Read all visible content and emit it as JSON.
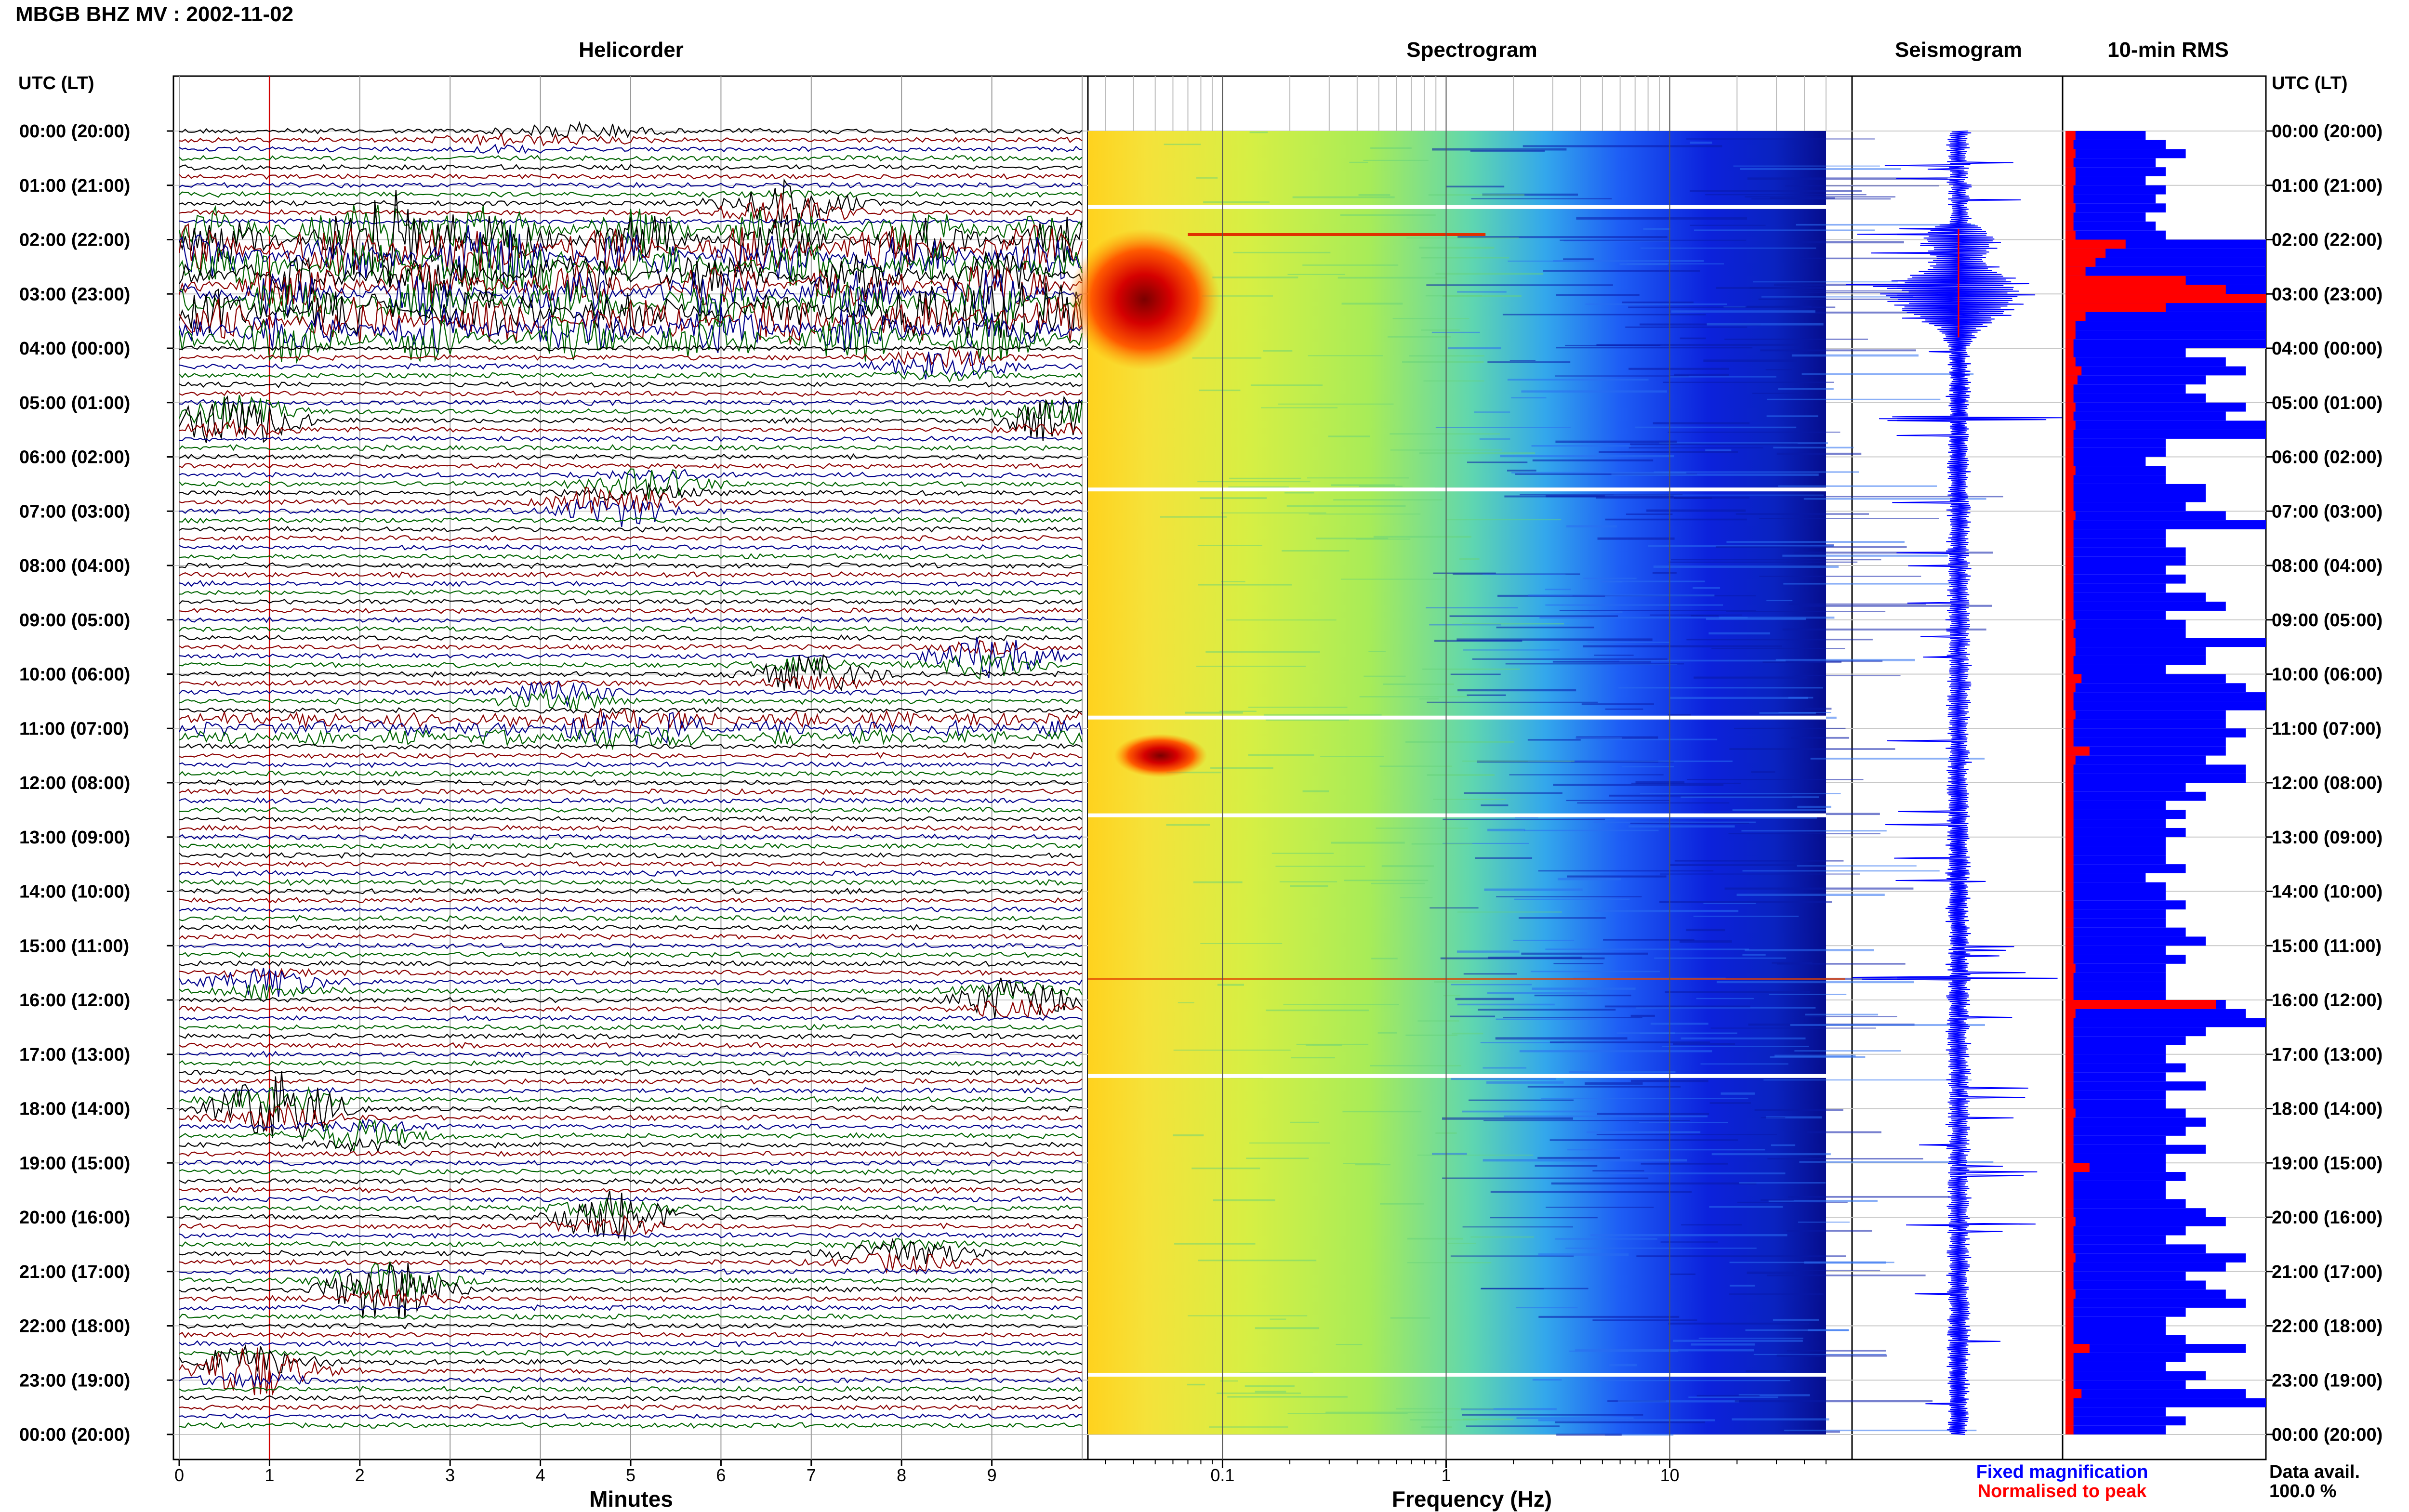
{
  "page": {
    "title": "MBGB BHZ MV : 2002-11-02",
    "time_axis_label": "UTC (LT)"
  },
  "panels": {
    "helicorder": "Helicorder",
    "spectrogram": "Spectrogram",
    "seismogram": "Seismogram",
    "rms": "10-min RMS"
  },
  "time_labels": [
    "00:00 (20:00)",
    "01:00 (21:00)",
    "02:00 (22:00)",
    "03:00 (23:00)",
    "04:00 (00:00)",
    "05:00 (01:00)",
    "06:00 (02:00)",
    "07:00 (03:00)",
    "08:00 (04:00)",
    "09:00 (05:00)",
    "10:00 (06:00)",
    "11:00 (07:00)",
    "12:00 (08:00)",
    "13:00 (09:00)",
    "14:00 (10:00)",
    "15:00 (11:00)",
    "16:00 (12:00)",
    "17:00 (13:00)",
    "18:00 (14:00)",
    "19:00 (15:00)",
    "20:00 (16:00)",
    "21:00 (17:00)",
    "22:00 (18:00)",
    "23:00 (19:00)",
    "00:00 (20:00)"
  ],
  "helicorder_axis": {
    "label": "Minutes",
    "ticks": [
      "0",
      "1",
      "2",
      "3",
      "4",
      "5",
      "6",
      "7",
      "8",
      "9"
    ],
    "range": [
      0,
      10
    ],
    "trace_colors": [
      "#000000",
      "#8b0000",
      "#00008b",
      "#006400"
    ],
    "rows_per_hour": 6
  },
  "spectrogram_axis": {
    "label": "Frequency (Hz)",
    "scale": "log",
    "ticks": [
      "0.1",
      "1",
      "10"
    ],
    "range_hz": [
      0.025,
      50
    ]
  },
  "legend": {
    "fixed": "Fixed magnification",
    "normalised": "Normalised to peak",
    "fixed_color": "#0000ff",
    "normalised_color": "#ff0000"
  },
  "data_availability": {
    "label": "Data avail.",
    "value": "100.0 %"
  },
  "chart_data": {
    "type": "heatmap",
    "title": "MBGB BHZ MV : 2002-11-02",
    "ylabel": "UTC (LT)",
    "helicorder": {
      "xlabel": "Minutes",
      "xlim": [
        0,
        10
      ],
      "events_utc_hour_minute": [
        {
          "hour": 0.0,
          "minute": 4.5,
          "amp": 0.6,
          "color": "black"
        },
        {
          "hour": 0.2,
          "minute": 3.5,
          "amp": 0.4,
          "color": "blue"
        },
        {
          "hour": 1.4,
          "minute": 6.7,
          "amp": 2.5,
          "color": "blue"
        },
        {
          "hour": 2.0,
          "minute": 2.5,
          "amp": 3.0,
          "color": "darkred"
        },
        {
          "hour": 2.4,
          "minute": 3.5,
          "amp": 2.5,
          "color": "black"
        },
        {
          "hour": 3.3,
          "minute": 9.0,
          "amp": 2.0,
          "color": "darkred"
        },
        {
          "hour": 4.3,
          "minute": 8.5,
          "amp": 1.5,
          "color": "blue"
        },
        {
          "hour": 5.3,
          "minute": 0.6,
          "amp": 2.5,
          "color": "darkred"
        },
        {
          "hour": 5.3,
          "minute": 9.8,
          "amp": 2.0,
          "color": "black"
        },
        {
          "hour": 6.5,
          "minute": 5.2,
          "amp": 1.2,
          "color": "black"
        },
        {
          "hour": 6.9,
          "minute": 4.8,
          "amp": 2.0,
          "color": "black"
        },
        {
          "hour": 9.7,
          "minute": 9.0,
          "amp": 2.0,
          "color": "darkgreen"
        },
        {
          "hour": 10.4,
          "minute": 4.2,
          "amp": 1.2,
          "color": "darkgreen"
        },
        {
          "hour": 10.0,
          "minute": 7.0,
          "amp": 1.5,
          "color": "black"
        },
        {
          "hour": 11.0,
          "minute": 5.0,
          "amp": 1.2,
          "color": "darkgreen"
        },
        {
          "hour": 16.0,
          "minute": 9.3,
          "amp": 1.8,
          "color": "black"
        },
        {
          "hour": 15.7,
          "minute": 1.0,
          "amp": 1.2,
          "color": "blue"
        },
        {
          "hour": 18.0,
          "minute": 1.1,
          "amp": 3.0,
          "color": "darkred"
        },
        {
          "hour": 18.5,
          "minute": 2.0,
          "amp": 1.2,
          "color": "darkgreen"
        },
        {
          "hour": 20.0,
          "minute": 4.8,
          "amp": 2.0,
          "color": "black"
        },
        {
          "hour": 20.7,
          "minute": 8.0,
          "amp": 1.5,
          "color": "black"
        },
        {
          "hour": 21.3,
          "minute": 2.3,
          "amp": 3.0,
          "color": "darkred"
        },
        {
          "hour": 22.8,
          "minute": 0.8,
          "amp": 2.5,
          "color": "darkred"
        }
      ]
    },
    "spectrogram": {
      "xlabel": "Frequency (Hz)",
      "xscale": "log",
      "xlim": [
        0.025,
        50
      ],
      "gaps_utc_hour": [
        1.4,
        6.6,
        10.8,
        12.6,
        17.4,
        22.9
      ],
      "hotspots": [
        {
          "hour_from": 1.8,
          "hour_to": 4.4,
          "f_from": 0.025,
          "f_to": 0.08
        },
        {
          "hour_from": 11.1,
          "hour_to": 11.9,
          "f_from": 0.04,
          "f_to": 0.07
        }
      ]
    },
    "rms_10min": {
      "series": [
        {
          "name": "Fixed magnification",
          "color": "#0000ff",
          "values": [
            0.4,
            0.5,
            0.6,
            0.45,
            0.5,
            0.4,
            0.5,
            0.45,
            0.5,
            0.4,
            0.45,
            0.5,
            1.0,
            1.0,
            1.0,
            1.0,
            1.0,
            1.0,
            1.0,
            1.0,
            1.0,
            1.0,
            1.0,
            1.0,
            0.6,
            0.8,
            0.9,
            0.7,
            0.6,
            0.7,
            0.9,
            0.8,
            1.0,
            1.0,
            0.5,
            0.5,
            0.4,
            0.5,
            0.5,
            0.7,
            0.7,
            0.6,
            0.8,
            1.0,
            0.5,
            0.5,
            0.6,
            0.6,
            0.5,
            0.6,
            0.5,
            0.7,
            0.8,
            0.5,
            0.6,
            0.6,
            1.0,
            0.7,
            0.7,
            0.5,
            0.8,
            0.9,
            1.0,
            1.0,
            0.8,
            0.8,
            0.9,
            0.8,
            0.8,
            0.7,
            0.9,
            0.9,
            0.6,
            0.7,
            0.5,
            0.6,
            0.5,
            0.6,
            0.5,
            0.5,
            0.5,
            0.6,
            0.4,
            0.5,
            0.5,
            0.6,
            0.5,
            0.5,
            0.6,
            0.7,
            0.5,
            0.6,
            0.5,
            0.5,
            0.5,
            0.5,
            0.8,
            0.9,
            1.0,
            0.7,
            0.6,
            0.5,
            0.5,
            0.6,
            0.5,
            0.7,
            0.5,
            0.5,
            0.6,
            0.7,
            0.6,
            0.5,
            0.7,
            0.5,
            0.5,
            0.6,
            0.5,
            0.5,
            0.6,
            0.7,
            0.8,
            0.6,
            0.5,
            0.7,
            0.9,
            0.8,
            0.6,
            0.7,
            0.8,
            0.9,
            0.6,
            0.5,
            0.5,
            0.6,
            0.9,
            0.6,
            0.5,
            0.7,
            0.6,
            0.9,
            1.0,
            0.5,
            0.6,
            0.5
          ]
        },
        {
          "name": "Normalised to peak",
          "color": "#ff0000",
          "values": [
            0.05,
            0.04,
            0.05,
            0.04,
            0.05,
            0.05,
            0.04,
            0.04,
            0.05,
            0.04,
            0.04,
            0.05,
            0.3,
            0.2,
            0.15,
            0.1,
            0.6,
            0.8,
            1.0,
            0.5,
            0.1,
            0.05,
            0.05,
            0.04,
            0.04,
            0.05,
            0.08,
            0.06,
            0.04,
            0.04,
            0.05,
            0.04,
            0.05,
            0.04,
            0.04,
            0.04,
            0.04,
            0.05,
            0.04,
            0.04,
            0.04,
            0.04,
            0.05,
            0.04,
            0.04,
            0.04,
            0.04,
            0.04,
            0.04,
            0.04,
            0.04,
            0.04,
            0.04,
            0.04,
            0.05,
            0.04,
            0.05,
            0.05,
            0.04,
            0.04,
            0.08,
            0.05,
            0.04,
            0.04,
            0.05,
            0.04,
            0.04,
            0.04,
            0.12,
            0.05,
            0.04,
            0.04,
            0.04,
            0.04,
            0.04,
            0.04,
            0.04,
            0.04,
            0.04,
            0.04,
            0.04,
            0.04,
            0.04,
            0.04,
            0.04,
            0.04,
            0.04,
            0.04,
            0.04,
            0.04,
            0.04,
            0.04,
            0.05,
            0.04,
            0.04,
            0.04,
            0.75,
            0.05,
            0.04,
            0.04,
            0.04,
            0.04,
            0.04,
            0.04,
            0.04,
            0.04,
            0.04,
            0.04,
            0.05,
            0.04,
            0.04,
            0.04,
            0.04,
            0.04,
            0.12,
            0.04,
            0.04,
            0.04,
            0.04,
            0.04,
            0.05,
            0.04,
            0.04,
            0.04,
            0.05,
            0.04,
            0.04,
            0.04,
            0.05,
            0.04,
            0.04,
            0.04,
            0.04,
            0.04,
            0.12,
            0.04,
            0.04,
            0.04,
            0.04,
            0.08,
            0.04,
            0.04,
            0.04,
            0.04
          ]
        }
      ]
    }
  }
}
